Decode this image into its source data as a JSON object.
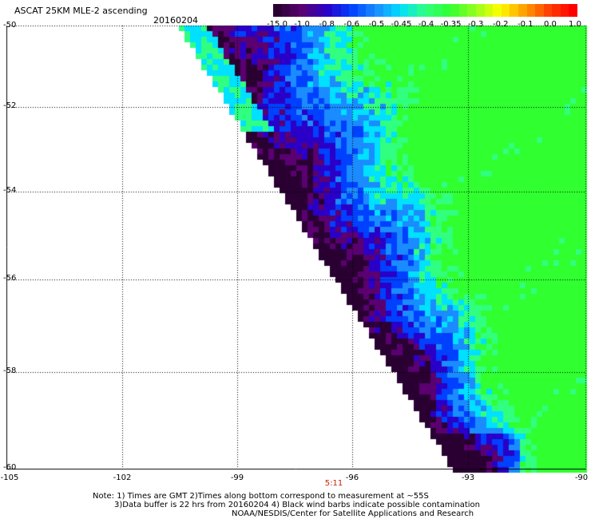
{
  "header": {
    "title": "ASCAT 25KM MLE-2 ascending",
    "date": "20160204"
  },
  "colorbar": {
    "ticks": [
      "-15.0",
      "-1.0",
      "-0.8",
      "-0.6",
      "-0.5",
      "-0.45",
      "-0.4",
      "-0.35",
      "-0.3",
      "-0.2",
      "-0.1",
      "0.0",
      "1.0"
    ],
    "colors": [
      "#2a0033",
      "#5a0070",
      "#2a00c8",
      "#0040ff",
      "#1a8cff",
      "#00e0ff",
      "#30ff80",
      "#30ff30",
      "#90ff20",
      "#ffff00",
      "#ffa000",
      "#ff4000",
      "#ff0000"
    ]
  },
  "axes": {
    "lat_labels": [
      "-50",
      "-52",
      "-54",
      "-56",
      "-58",
      "-60"
    ],
    "lon_labels": [
      "-105",
      "-102",
      "-99",
      "-96",
      "-93",
      "-90"
    ]
  },
  "time_marker": "5:11",
  "notes": {
    "line1": "Note: 1) Times are GMT 2)Times along bottom correspond to measurement at ~55S",
    "line2": "3)Data buffer is 22 hrs from 20160204 4) Black wind barbs indicate possible contamination",
    "line3": "NOAA/NESDIS/Center for Satellite Applications and Research"
  },
  "map_data": {
    "projection": "lat-lon",
    "lon_range": [
      -105,
      -90
    ],
    "lat_range": [
      -60,
      -50
    ],
    "swath_edge": "diagonal western edge running from about 101W,50S to 92W,60S",
    "palette": [
      "#2a0033",
      "#5a0070",
      "#2a00c8",
      "#0040ff",
      "#1a8cff",
      "#00e0ff",
      "#30ff80",
      "#30ff30"
    ]
  }
}
